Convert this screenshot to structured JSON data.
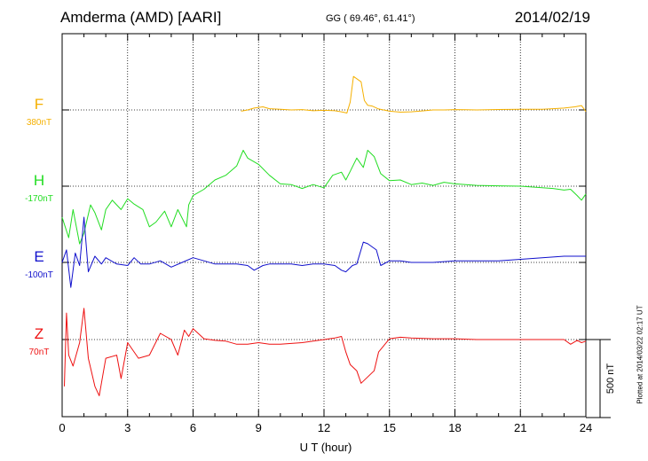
{
  "header": {
    "station": "Amderma (AMD)  [AARI]",
    "coords": "GG ( 69.46°,  61.41°)",
    "date": "2014/02/19"
  },
  "footer": {
    "plotted": "Plotted at 2014/03/22 02:17 UT"
  },
  "chart_data": {
    "type": "line",
    "xlabel": "U T (hour)",
    "xlim": [
      0,
      24
    ],
    "xticks": [
      "0",
      "3",
      "6",
      "9",
      "12",
      "15",
      "18",
      "21",
      "24"
    ],
    "grid": true,
    "scale_bar": {
      "label": "500 nT",
      "value_nT": 500
    },
    "panels": [
      {
        "component": "F",
        "baseline": "380nT",
        "color": "#f5b000",
        "points": [
          [
            8.2,
            -8
          ],
          [
            8.5,
            0
          ],
          [
            8.8,
            12
          ],
          [
            9.2,
            20
          ],
          [
            9.5,
            8
          ],
          [
            10,
            4
          ],
          [
            10.5,
            0
          ],
          [
            11,
            2
          ],
          [
            11.5,
            -5
          ],
          [
            12,
            -2
          ],
          [
            12.5,
            -5
          ],
          [
            12.9,
            -15
          ],
          [
            13.05,
            -20
          ],
          [
            13.2,
            50
          ],
          [
            13.35,
            215
          ],
          [
            13.5,
            200
          ],
          [
            13.7,
            180
          ],
          [
            13.85,
            60
          ],
          [
            14,
            30
          ],
          [
            14.2,
            25
          ],
          [
            14.5,
            6
          ],
          [
            15,
            -8
          ],
          [
            15.5,
            -14
          ],
          [
            16,
            -12
          ],
          [
            16.5,
            -6
          ],
          [
            17,
            0
          ],
          [
            17.5,
            0
          ],
          [
            18,
            2
          ],
          [
            18.5,
            1
          ],
          [
            19,
            0
          ],
          [
            20,
            3
          ],
          [
            21,
            4
          ],
          [
            22,
            4
          ],
          [
            22.5,
            8
          ],
          [
            23,
            12
          ],
          [
            23.5,
            20
          ],
          [
            23.8,
            28
          ],
          [
            24,
            -10
          ]
        ]
      },
      {
        "component": "H",
        "baseline": "-170nT",
        "color": "#22dd22",
        "points": [
          [
            0,
            -200
          ],
          [
            0.3,
            -330
          ],
          [
            0.5,
            -150
          ],
          [
            0.8,
            -370
          ],
          [
            1,
            -300
          ],
          [
            1.3,
            -120
          ],
          [
            1.5,
            -170
          ],
          [
            1.8,
            -280
          ],
          [
            2,
            -150
          ],
          [
            2.3,
            -90
          ],
          [
            2.7,
            -150
          ],
          [
            3,
            -80
          ],
          [
            3.3,
            -115
          ],
          [
            3.7,
            -150
          ],
          [
            4,
            -260
          ],
          [
            4.3,
            -230
          ],
          [
            4.7,
            -160
          ],
          [
            5,
            -260
          ],
          [
            5.3,
            -150
          ],
          [
            5.7,
            -260
          ],
          [
            5.8,
            -120
          ],
          [
            6,
            -60
          ],
          [
            6.5,
            -20
          ],
          [
            7,
            40
          ],
          [
            7.5,
            70
          ],
          [
            8,
            130
          ],
          [
            8.3,
            230
          ],
          [
            8.5,
            180
          ],
          [
            9,
            140
          ],
          [
            9.5,
            70
          ],
          [
            10,
            15
          ],
          [
            10.5,
            10
          ],
          [
            11,
            -15
          ],
          [
            11.5,
            10
          ],
          [
            12,
            -10
          ],
          [
            12.4,
            70
          ],
          [
            12.8,
            90
          ],
          [
            13,
            40
          ],
          [
            13.2,
            95
          ],
          [
            13.5,
            180
          ],
          [
            13.8,
            120
          ],
          [
            14,
            230
          ],
          [
            14.3,
            190
          ],
          [
            14.6,
            80
          ],
          [
            15,
            35
          ],
          [
            15.5,
            40
          ],
          [
            16,
            10
          ],
          [
            16.5,
            20
          ],
          [
            17,
            5
          ],
          [
            17.5,
            25
          ],
          [
            18,
            15
          ],
          [
            18.5,
            10
          ],
          [
            19,
            5
          ],
          [
            20,
            2
          ],
          [
            21,
            0
          ],
          [
            22,
            -10
          ],
          [
            22.5,
            -15
          ],
          [
            23,
            -25
          ],
          [
            23.3,
            -20
          ],
          [
            23.6,
            -60
          ],
          [
            23.8,
            -90
          ],
          [
            24,
            -50
          ]
        ]
      },
      {
        "component": "E",
        "baseline": "-100nT",
        "color": "#1010cc",
        "points": [
          [
            0,
            0
          ],
          [
            0.2,
            80
          ],
          [
            0.4,
            -160
          ],
          [
            0.6,
            60
          ],
          [
            0.8,
            -20
          ],
          [
            1,
            290
          ],
          [
            1.2,
            -60
          ],
          [
            1.5,
            40
          ],
          [
            1.8,
            -10
          ],
          [
            2,
            30
          ],
          [
            2.5,
            -10
          ],
          [
            3,
            -20
          ],
          [
            3.3,
            30
          ],
          [
            3.6,
            -10
          ],
          [
            4,
            -10
          ],
          [
            4.5,
            10
          ],
          [
            5,
            -30
          ],
          [
            5.5,
            0
          ],
          [
            6,
            30
          ],
          [
            6.5,
            10
          ],
          [
            7,
            -10
          ],
          [
            7.5,
            -10
          ],
          [
            8,
            -10
          ],
          [
            8.5,
            -20
          ],
          [
            8.8,
            -50
          ],
          [
            9.2,
            -20
          ],
          [
            9.5,
            -10
          ],
          [
            10,
            -10
          ],
          [
            10.5,
            -10
          ],
          [
            11,
            -20
          ],
          [
            11.5,
            -10
          ],
          [
            12,
            -10
          ],
          [
            12.5,
            -20
          ],
          [
            12.8,
            -50
          ],
          [
            13,
            -60
          ],
          [
            13.3,
            -20
          ],
          [
            13.5,
            -10
          ],
          [
            13.8,
            130
          ],
          [
            14,
            120
          ],
          [
            14.2,
            100
          ],
          [
            14.4,
            80
          ],
          [
            14.6,
            -20
          ],
          [
            15,
            10
          ],
          [
            15.5,
            10
          ],
          [
            16,
            0
          ],
          [
            16.5,
            0
          ],
          [
            17,
            0
          ],
          [
            18,
            10
          ],
          [
            19,
            10
          ],
          [
            20,
            10
          ],
          [
            21,
            20
          ],
          [
            22,
            30
          ],
          [
            23,
            40
          ],
          [
            24,
            40
          ]
        ]
      },
      {
        "component": "Z",
        "baseline": "70nT",
        "color": "#ee1111",
        "points": [
          [
            0.1,
            -300
          ],
          [
            0.2,
            170
          ],
          [
            0.3,
            -100
          ],
          [
            0.5,
            -170
          ],
          [
            0.8,
            -20
          ],
          [
            1,
            200
          ],
          [
            1.2,
            -120
          ],
          [
            1.5,
            -300
          ],
          [
            1.7,
            -360
          ],
          [
            1.9,
            -200
          ],
          [
            2,
            -120
          ],
          [
            2.5,
            -100
          ],
          [
            2.7,
            -250
          ],
          [
            3,
            -20
          ],
          [
            3.5,
            -120
          ],
          [
            4,
            -100
          ],
          [
            4.5,
            40
          ],
          [
            5,
            0
          ],
          [
            5.3,
            -100
          ],
          [
            5.6,
            60
          ],
          [
            5.8,
            20
          ],
          [
            6,
            70
          ],
          [
            6.5,
            5
          ],
          [
            7,
            -5
          ],
          [
            7.5,
            -10
          ],
          [
            8,
            -30
          ],
          [
            8.5,
            -30
          ],
          [
            9,
            -20
          ],
          [
            9.5,
            -30
          ],
          [
            10,
            -30
          ],
          [
            11,
            -20
          ],
          [
            12,
            0
          ],
          [
            12.5,
            10
          ],
          [
            12.8,
            20
          ],
          [
            13,
            -80
          ],
          [
            13.2,
            -160
          ],
          [
            13.5,
            -200
          ],
          [
            13.7,
            -280
          ],
          [
            14,
            -240
          ],
          [
            14.3,
            -200
          ],
          [
            14.5,
            -80
          ],
          [
            15,
            5
          ],
          [
            15.5,
            15
          ],
          [
            16,
            10
          ],
          [
            17,
            5
          ],
          [
            18,
            5
          ],
          [
            19,
            0
          ],
          [
            20,
            0
          ],
          [
            21,
            0
          ],
          [
            22,
            0
          ],
          [
            23,
            0
          ],
          [
            23.3,
            -30
          ],
          [
            23.6,
            -5
          ],
          [
            23.8,
            -20
          ],
          [
            24,
            -10
          ]
        ]
      }
    ]
  }
}
